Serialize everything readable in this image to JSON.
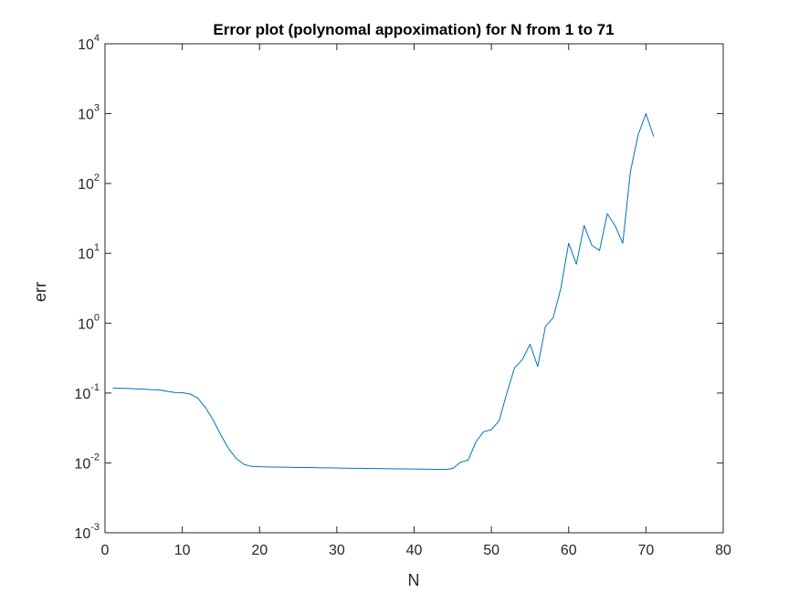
{
  "chart_data": {
    "type": "line",
    "title": "Error plot (polynomal appoximation) for N from 1 to 71",
    "xlabel": "N",
    "ylabel": "err",
    "xlim": [
      0,
      80
    ],
    "ylim": [
      0.001,
      10000
    ],
    "yscale": "log",
    "x_ticks": [
      0,
      10,
      20,
      30,
      40,
      50,
      60,
      70,
      80
    ],
    "y_ticks": [
      {
        "value": 0.001,
        "base": "10",
        "exp": "-3"
      },
      {
        "value": 0.01,
        "base": "10",
        "exp": "-2"
      },
      {
        "value": 0.1,
        "base": "10",
        "exp": "-1"
      },
      {
        "value": 1,
        "base": "10",
        "exp": "0"
      },
      {
        "value": 10,
        "base": "10",
        "exp": "1"
      },
      {
        "value": 100,
        "base": "10",
        "exp": "2"
      },
      {
        "value": 1000,
        "base": "10",
        "exp": "3"
      },
      {
        "value": 10000,
        "base": "10",
        "exp": "4"
      }
    ],
    "grid": false,
    "legend": "none",
    "colors": {
      "series": "#0072BD",
      "axes": "#262626",
      "background": "#ffffff"
    },
    "series": [
      {
        "x": [
          1,
          2,
          3,
          4,
          5,
          6,
          7,
          8,
          9,
          10,
          11,
          12,
          13,
          14,
          15,
          16,
          17,
          18,
          19,
          20,
          21,
          22,
          23,
          24,
          25,
          26,
          27,
          28,
          29,
          30,
          31,
          32,
          33,
          34,
          35,
          36,
          37,
          38,
          39,
          40,
          41,
          42,
          43,
          44,
          45,
          46,
          47,
          48,
          49,
          50,
          51,
          52,
          53,
          54,
          55,
          56,
          57,
          58,
          59,
          60,
          61,
          62,
          63,
          64,
          65,
          66,
          67,
          68,
          69,
          70,
          71
        ],
        "y": [
          0.118,
          0.117,
          0.116,
          0.115,
          0.114,
          0.112,
          0.111,
          0.106,
          0.102,
          0.101,
          0.097,
          0.085,
          0.062,
          0.041,
          0.025,
          0.016,
          0.0115,
          0.0095,
          0.0089,
          0.0088,
          0.00875,
          0.0087,
          0.00868,
          0.00865,
          0.0086,
          0.00858,
          0.00855,
          0.0085,
          0.00848,
          0.00845,
          0.0084,
          0.00837,
          0.00835,
          0.00832,
          0.0083,
          0.00827,
          0.00825,
          0.00822,
          0.0082,
          0.00817,
          0.00815,
          0.00812,
          0.0081,
          0.00805,
          0.0083,
          0.0102,
          0.011,
          0.02,
          0.028,
          0.03,
          0.04,
          0.1,
          0.23,
          0.3,
          0.5,
          0.24,
          0.9,
          1.2,
          3.2,
          14,
          7,
          25,
          13,
          11,
          37,
          25,
          14,
          150,
          500,
          1000,
          470
        ]
      }
    ]
  }
}
